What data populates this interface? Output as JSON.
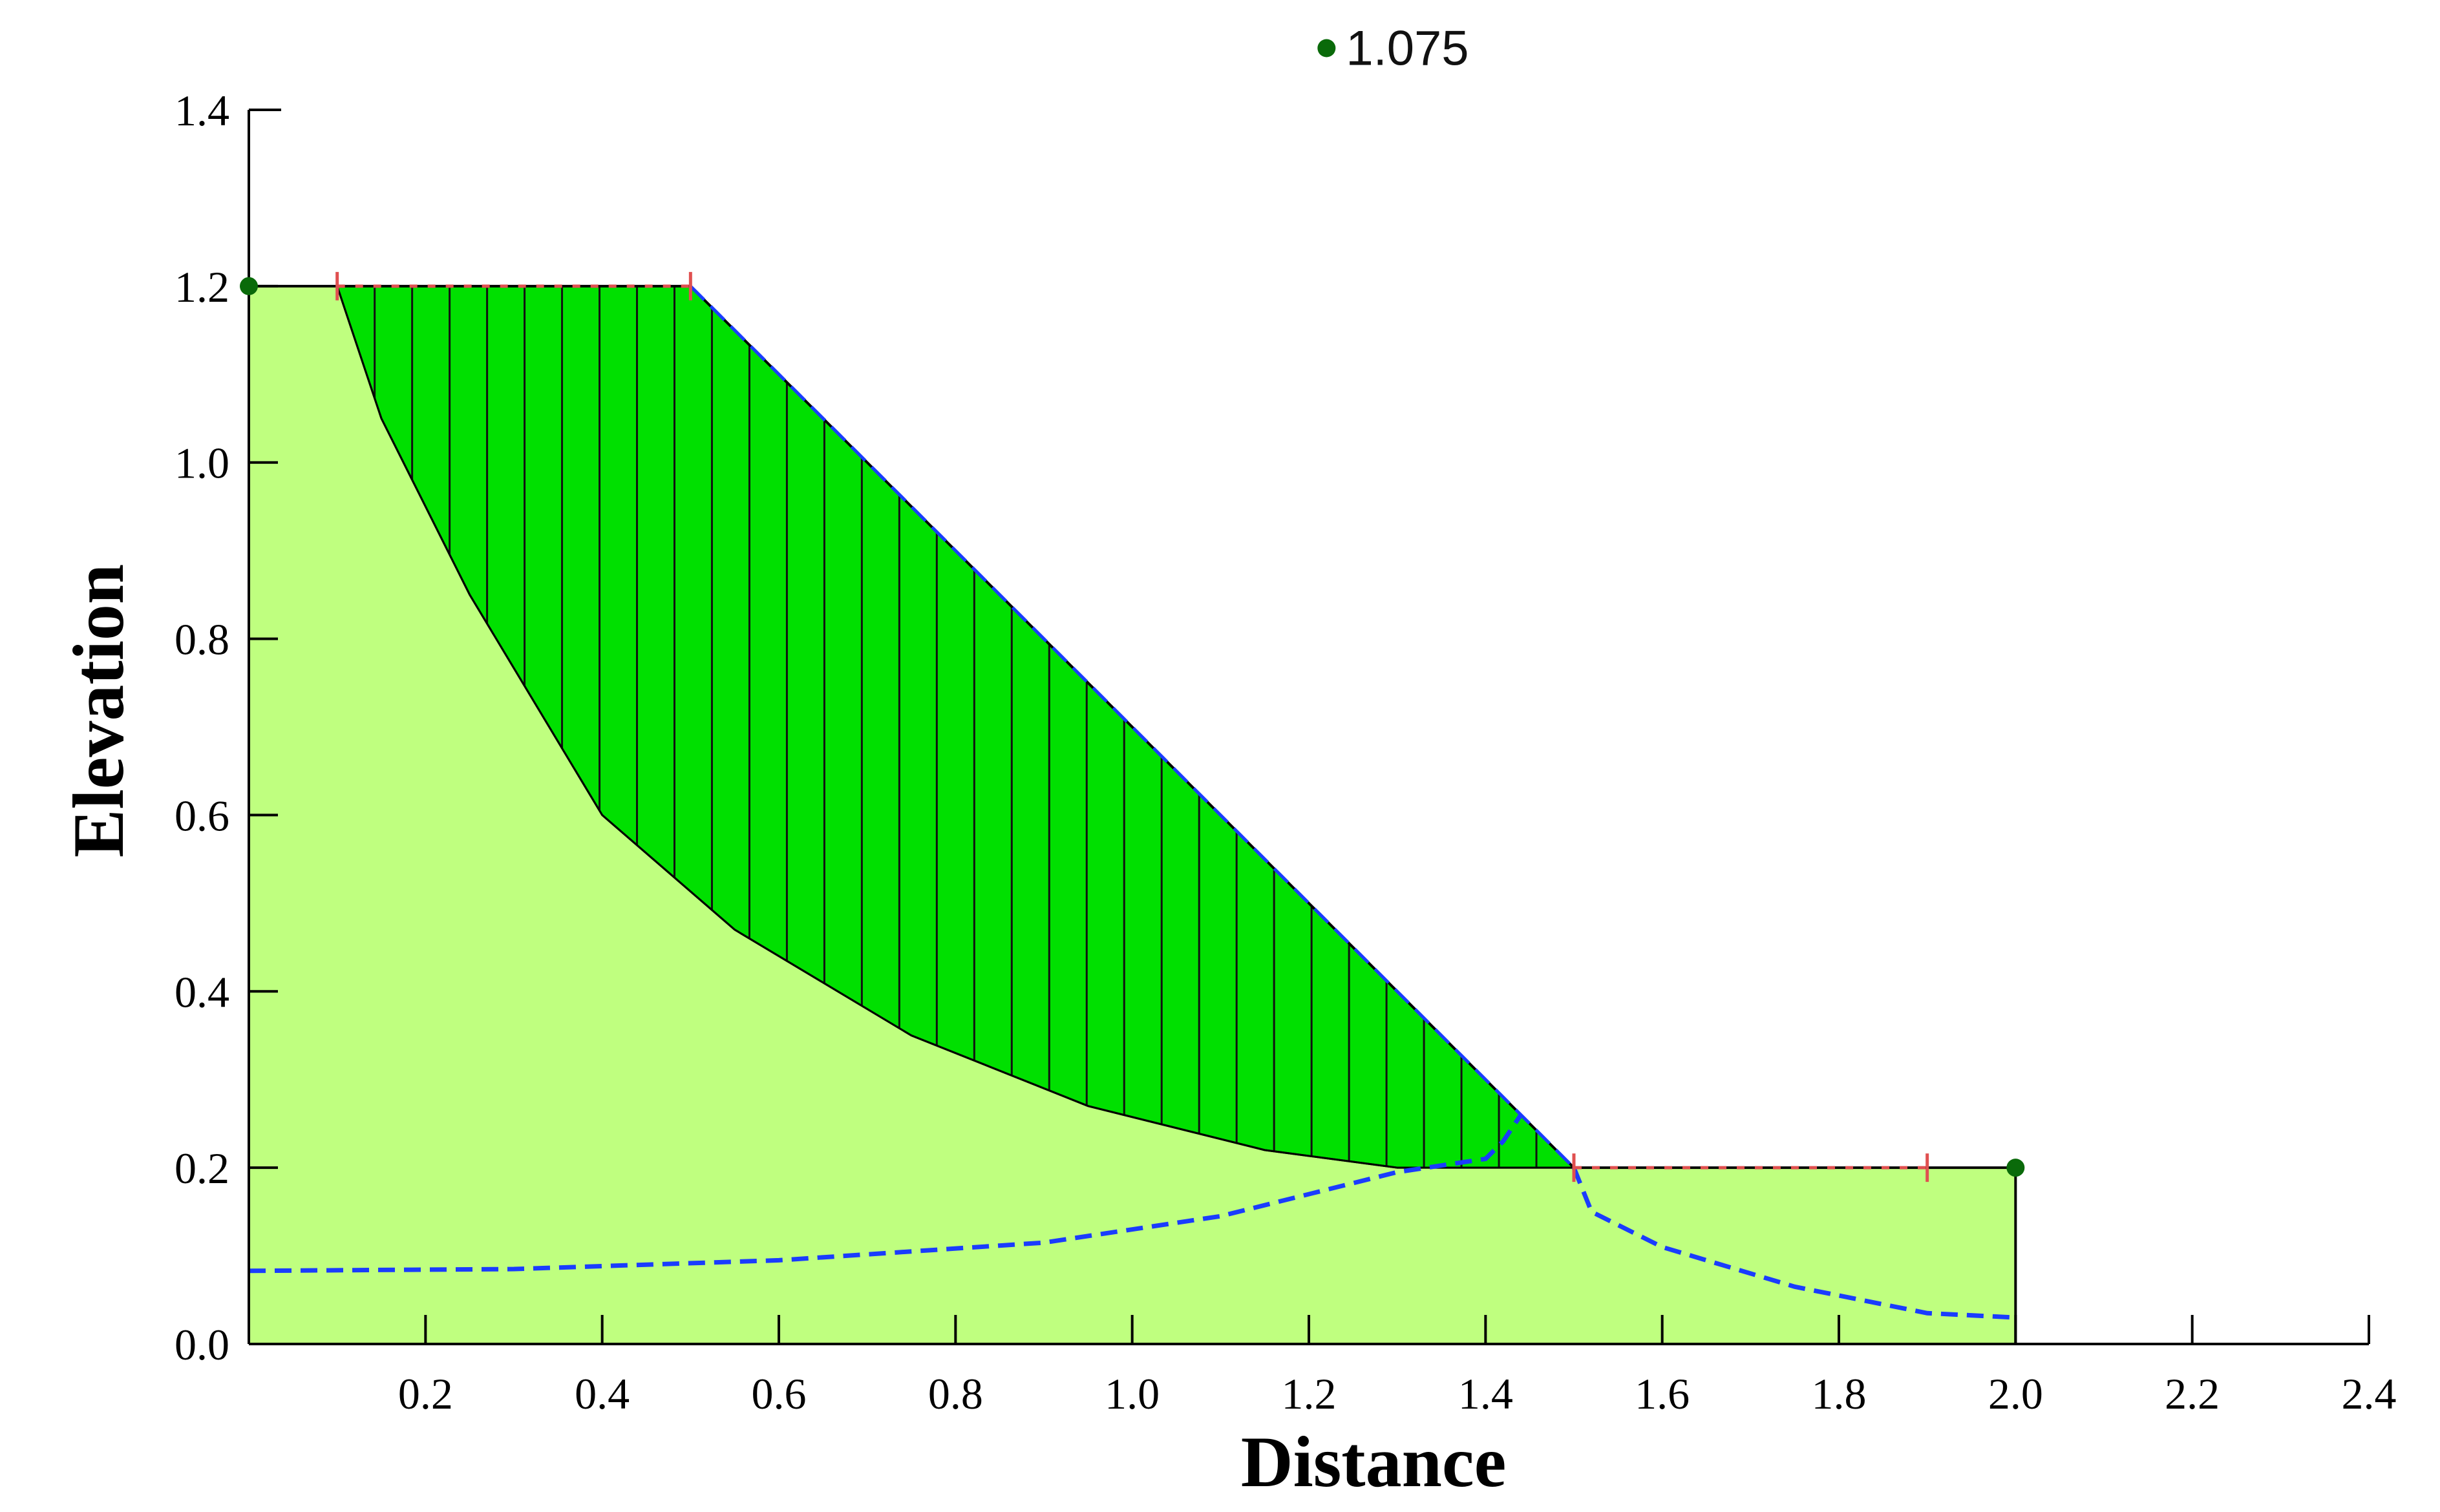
{
  "colors": {
    "soil_fill": "#bfff7f",
    "slip_mass_fill": "#00e000",
    "phreatic_line": "#1a3cff",
    "marker": "#e05050",
    "fos_point": "#0a6a0a",
    "slice_line": "#111111"
  },
  "chart_data": {
    "type": "slope-stability",
    "xlabel": "Distance",
    "ylabel": "Elevation",
    "xlim": [
      0,
      2.4
    ],
    "ylim": [
      0,
      1.4
    ],
    "xticks": [
      "0.2",
      "0.4",
      "0.6",
      "0.8",
      "1.0",
      "1.2",
      "1.4",
      "1.6",
      "1.8",
      "2.0",
      "2.2",
      "2.4"
    ],
    "yticks": [
      "0.0",
      "0.2",
      "0.4",
      "0.6",
      "0.8",
      "1.0",
      "1.2",
      "1.4"
    ],
    "slope_profile": [
      [
        0,
        0
      ],
      [
        0,
        1.2
      ],
      [
        0.5,
        1.2
      ],
      [
        1.5,
        0.2
      ],
      [
        2.0,
        0.2
      ],
      [
        2.0,
        0
      ]
    ],
    "slip_surface": [
      [
        0.1,
        1.2
      ],
      [
        0.15,
        1.05
      ],
      [
        0.25,
        0.85
      ],
      [
        0.4,
        0.6
      ],
      [
        0.55,
        0.47
      ],
      [
        0.75,
        0.35
      ],
      [
        0.95,
        0.27
      ],
      [
        1.15,
        0.22
      ],
      [
        1.3,
        0.2
      ],
      [
        1.5,
        0.2
      ]
    ],
    "slice_x_start": 0.1,
    "slice_x_end": 1.5,
    "slice_count": 33,
    "phreatic_line": [
      [
        0,
        0.083
      ],
      [
        0.3,
        0.085
      ],
      [
        0.6,
        0.095
      ],
      [
        0.9,
        0.115
      ],
      [
        1.1,
        0.145
      ],
      [
        1.3,
        0.195
      ],
      [
        1.4,
        0.21
      ],
      [
        1.42,
        0.23
      ],
      [
        1.44,
        0.26
      ]
    ],
    "phreatic_line_toe": [
      [
        1.5,
        0.2
      ],
      [
        1.52,
        0.15
      ],
      [
        1.6,
        0.11
      ],
      [
        1.75,
        0.065
      ],
      [
        1.9,
        0.035
      ],
      [
        2.0,
        0.03
      ]
    ],
    "crest_markers": [
      [
        0.1,
        1.2
      ],
      [
        0.5,
        1.2
      ]
    ],
    "toe_markers": [
      [
        1.5,
        0.2
      ],
      [
        1.9,
        0.2
      ]
    ],
    "boundary_markers": [
      [
        0,
        1.2
      ],
      [
        2.0,
        0.2
      ]
    ],
    "factor_of_safety": {
      "value": "1.075",
      "x": 1.22,
      "y": 1.47
    }
  }
}
